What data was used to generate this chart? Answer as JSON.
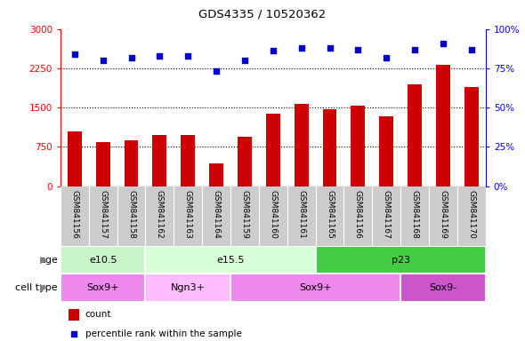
{
  "title": "GDS4335 / 10520362",
  "samples": [
    "GSM841156",
    "GSM841157",
    "GSM841158",
    "GSM841162",
    "GSM841163",
    "GSM841164",
    "GSM841159",
    "GSM841160",
    "GSM841161",
    "GSM841165",
    "GSM841166",
    "GSM841167",
    "GSM841168",
    "GSM841169",
    "GSM841170"
  ],
  "counts": [
    1050,
    850,
    870,
    980,
    980,
    430,
    940,
    1380,
    1570,
    1470,
    1530,
    1330,
    1950,
    2310,
    1900
  ],
  "percentiles": [
    84,
    80,
    82,
    83,
    83,
    73,
    80,
    86,
    88,
    88,
    87,
    82,
    87,
    91,
    87
  ],
  "ylim_left": [
    0,
    3000
  ],
  "ylim_right": [
    0,
    100
  ],
  "yticks_left": [
    0,
    750,
    1500,
    2250,
    3000
  ],
  "yticks_right": [
    0,
    25,
    50,
    75,
    100
  ],
  "ytick_labels_right": [
    "0%",
    "25%",
    "50%",
    "75%",
    "100%"
  ],
  "age_groups": [
    {
      "label": "e10.5",
      "start": 0,
      "end": 3,
      "color": "#c8f5c8"
    },
    {
      "label": "e15.5",
      "start": 3,
      "end": 9,
      "color": "#d8ffd8"
    },
    {
      "label": "p23",
      "start": 9,
      "end": 15,
      "color": "#44cc44"
    }
  ],
  "cell_type_groups": [
    {
      "label": "Sox9+",
      "start": 0,
      "end": 3,
      "color": "#ee88ee"
    },
    {
      "label": "Ngn3+",
      "start": 3,
      "end": 6,
      "color": "#ffbbff"
    },
    {
      "label": "Sox9+",
      "start": 6,
      "end": 12,
      "color": "#ee88ee"
    },
    {
      "label": "Sox9-",
      "start": 12,
      "end": 15,
      "color": "#cc55cc"
    }
  ],
  "bar_color": "#cc0000",
  "dot_color": "#0000cc",
  "bg_color": "#cccccc",
  "legend_count_color": "#cc0000",
  "legend_percentile_color": "#0000cc",
  "bar_width": 0.5
}
